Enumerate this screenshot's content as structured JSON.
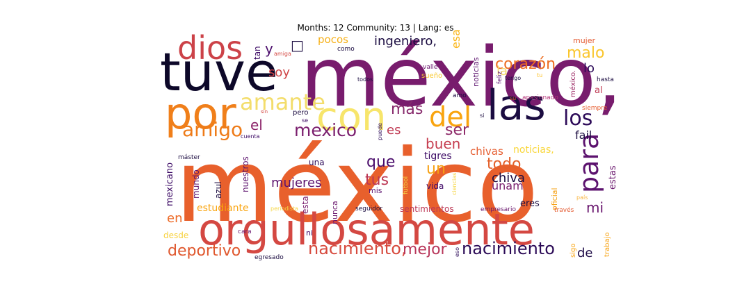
{
  "title": "Months: 12 Community: 13 | Lang: es",
  "words": [
    {
      "text": "méxico",
      "color": "#e8602c"
    },
    {
      "text": "méxico,",
      "color": "#781c6d"
    },
    {
      "text": "orgullosamente",
      "color": "#d44842"
    },
    {
      "text": "tuve",
      "color": "#0d0829"
    },
    {
      "text": "por",
      "color": "#f07f1a"
    },
    {
      "text": "dios",
      "color": "#cc4248"
    },
    {
      "text": "con",
      "color": "#f7e56b"
    },
    {
      "text": "las",
      "color": "#1b0c41"
    },
    {
      "text": "del",
      "color": "#f9a40f"
    },
    {
      "text": "amante",
      "color": "#f3dd6b"
    },
    {
      "text": "para",
      "color": "#5c126e"
    },
    {
      "text": "los",
      "color": "#2d0b59"
    },
    {
      "text": "amigo",
      "color": "#ee7b18"
    },
    {
      "text": "mexico",
      "color": "#7a1d6d"
    },
    {
      "text": "corazón",
      "color": "#ec6c20"
    },
    {
      "text": "malo",
      "color": "#fac62d"
    },
    {
      "text": "más",
      "color": "#872a6c"
    },
    {
      "text": "nacimiento,",
      "color": "#d74b3f"
    },
    {
      "text": "nacimiento",
      "color": "#2b0a56"
    },
    {
      "text": "deportivo",
      "color": "#e0582e"
    },
    {
      "text": "mejor",
      "color": "#b8365a"
    },
    {
      "text": "que",
      "color": "#4a0c6b"
    },
    {
      "text": "todo",
      "color": "#e4602a"
    },
    {
      "text": "ser",
      "color": "#8e2a69"
    },
    {
      "text": "buen",
      "color": "#c53c4e"
    },
    {
      "text": "un",
      "color": "#f6a114"
    },
    {
      "text": "tus",
      "color": "#bc3754"
    },
    {
      "text": "mujeres",
      "color": "#5c126e"
    },
    {
      "text": "chiva",
      "color": "#1b0c41"
    },
    {
      "text": "unam",
      "color": "#781c6d"
    },
    {
      "text": "mi",
      "color": "#69166e"
    },
    {
      "text": "en",
      "color": "#ed6925"
    },
    {
      "text": "de",
      "color": "#1f0c48"
    },
    {
      "text": "el",
      "color": "#8c2369"
    },
    {
      "text": "es",
      "color": "#bf3952"
    },
    {
      "text": "soy",
      "color": "#cf4446"
    },
    {
      "text": "y",
      "color": "#4a0c6b"
    },
    {
      "text": "lo",
      "color": "#2d0b59"
    },
    {
      "text": "la",
      "color": "#f4da6c"
    },
    {
      "text": "fail",
      "color": "#1b0c41"
    },
    {
      "text": "chivas",
      "color": "#e65d2f"
    },
    {
      "text": "noticias,",
      "color": "#f9d73c"
    },
    {
      "text": "estas",
      "color": "#6a176e"
    },
    {
      "text": "tigres",
      "color": "#3b0964"
    },
    {
      "text": "una",
      "color": "#2d0b59"
    },
    {
      "text": "vida",
      "color": "#420a68"
    },
    {
      "text": "eres",
      "color": "#1b0c41"
    },
    {
      "text": "ingeniero,",
      "color": "#1b0c41"
    },
    {
      "text": "pocos",
      "color": "#f6b018"
    },
    {
      "text": "esa",
      "color": "#fbb61a"
    },
    {
      "text": "mujer",
      "color": "#e45a31"
    },
    {
      "text": "como",
      "color": "#1b0c41"
    },
    {
      "text": "noticias",
      "color": "#5c126e"
    },
    {
      "text": "valle",
      "color": "#6a176e"
    },
    {
      "text": "sueño",
      "color": "#f8c931"
    },
    {
      "text": "feliz",
      "color": "#560f6e"
    },
    {
      "text": "tengo",
      "color": "#1b0c41"
    },
    {
      "text": "tu",
      "color": "#fcc229"
    },
    {
      "text": "hasta",
      "color": "#1b0c41"
    },
    {
      "text": "méxico.",
      "color": "#9c2964"
    },
    {
      "text": "al",
      "color": "#bf3952"
    },
    {
      "text": "apasionado",
      "color": "#b5367a"
    },
    {
      "text": "su",
      "color": "#e65d2f"
    },
    {
      "text": "amo",
      "color": "#1b0c41"
    },
    {
      "text": "siempre",
      "color": "#e65d2f"
    },
    {
      "text": "si",
      "color": "#1b0c41"
    },
    {
      "text": "tan",
      "color": "#3b0964"
    },
    {
      "text": "amiga",
      "color": "#d44842"
    },
    {
      "text": "todos",
      "color": "#1b0c41"
    },
    {
      "text": "sin",
      "color": "#d44842"
    },
    {
      "text": "se",
      "color": "#3b0964"
    },
    {
      "text": "pero",
      "color": "#1b0c41"
    },
    {
      "text": "máster",
      "color": "#1b0c41"
    },
    {
      "text": "cuenta",
      "color": "#3b0964"
    },
    {
      "text": "puede",
      "color": "#2d0b59"
    },
    {
      "text": "mexicano",
      "color": "#3b0964"
    },
    {
      "text": "mundo",
      "color": "#5c126e"
    },
    {
      "text": "azul",
      "color": "#1b0c41"
    },
    {
      "text": "nuestros",
      "color": "#5c126e"
    },
    {
      "text": "futbol",
      "color": "#f6d645"
    },
    {
      "text": "mis",
      "color": "#5c126e"
    },
    {
      "text": "esta",
      "color": "#781c6d"
    },
    {
      "text": "oficial",
      "color": "#f6a114"
    },
    {
      "text": "ciencias",
      "color": "#f6d645"
    },
    {
      "text": "país",
      "color": "#f9b641"
    },
    {
      "text": "estudiante",
      "color": "#f9a40f"
    },
    {
      "text": "periodista",
      "color": "#f6d645"
    },
    {
      "text": "nunca",
      "color": "#6a176e"
    },
    {
      "text": "seguidor",
      "color": "#1b0c41"
    },
    {
      "text": "sentimientos",
      "color": "#bc3754"
    },
    {
      "text": "empresario",
      "color": "#6a176e"
    },
    {
      "text": "través",
      "color": "#e45a31"
    },
    {
      "text": "trabajo",
      "color": "#f8a415"
    },
    {
      "text": "desde",
      "color": "#f7d13d"
    },
    {
      "text": "cara",
      "color": "#6a176e"
    },
    {
      "text": "ni",
      "color": "#420a68"
    },
    {
      "text": "sigo",
      "color": "#f9a40f"
    },
    {
      "text": "egresado",
      "color": "#1b0c41"
    },
    {
      "text": "eso",
      "color": "#2d0b59"
    },
    {
      "text": "□",
      "color": "#1b0c41"
    }
  ]
}
